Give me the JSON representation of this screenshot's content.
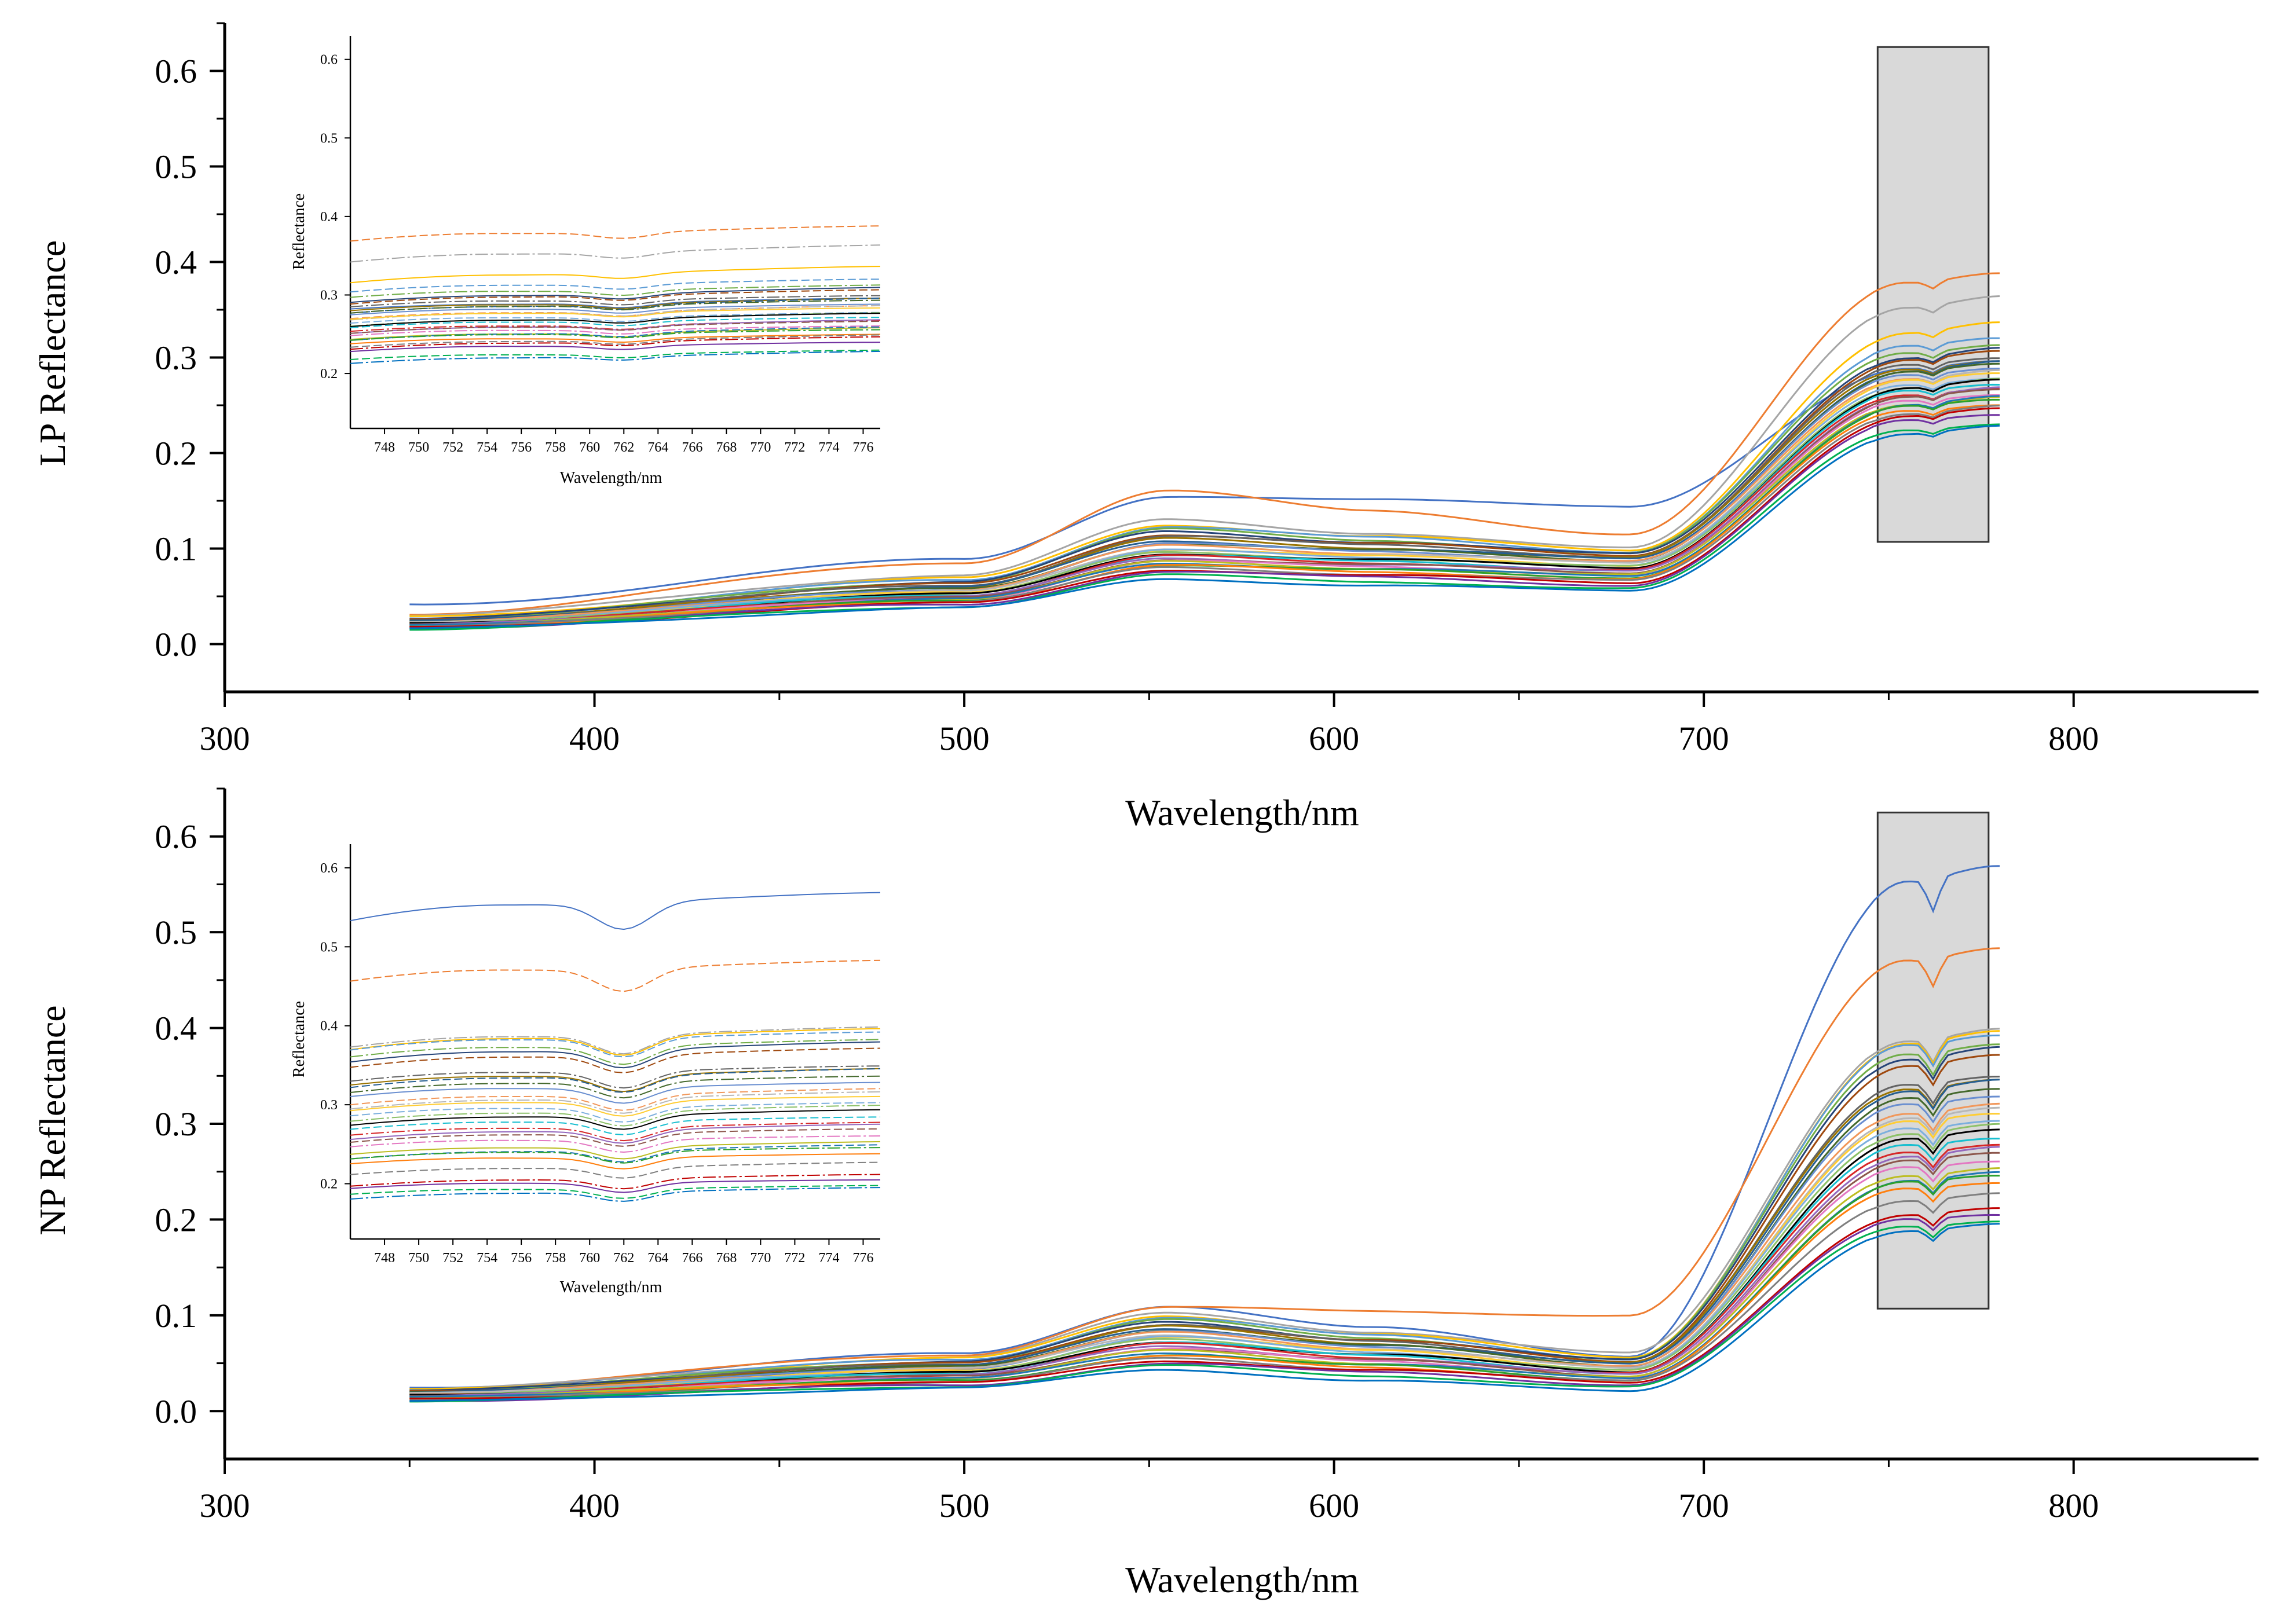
{
  "chart_data": [
    {
      "type": "line",
      "panel": "LP",
      "xlabel": "Wavelength/nm",
      "ylabel": "LP Reflectance",
      "xlim": [
        300,
        850
      ],
      "ylim": [
        -0.05,
        0.65
      ],
      "xticks": [
        300,
        400,
        500,
        600,
        700,
        800
      ],
      "yticks": [
        0.0,
        0.1,
        0.2,
        0.3,
        0.4,
        0.5,
        0.6
      ],
      "x_range": [
        350,
        780
      ],
      "highlight_range": {
        "x": [
          747,
          777
        ],
        "y": [
          0.107,
          0.625
        ],
        "color": "#d9d9d9"
      },
      "series_note": "33 reflectance spectra (350-780 nm)",
      "series_profiles": {
        "start": [
          0.041,
          0.032,
          0.03,
          0.028,
          0.027,
          0.026,
          0.026,
          0.025,
          0.025,
          0.024,
          0.024,
          0.023,
          0.023,
          0.023,
          0.022,
          0.022,
          0.022,
          0.021,
          0.021,
          0.021,
          0.02,
          0.02,
          0.02,
          0.019,
          0.019,
          0.019,
          0.018,
          0.018,
          0.018,
          0.017,
          0.017,
          0.016,
          0.016
        ],
        "green_peak": [
          0.155,
          0.16,
          0.13,
          0.125,
          0.123,
          0.12,
          0.118,
          0.115,
          0.113,
          0.11,
          0.108,
          0.106,
          0.105,
          0.103,
          0.1,
          0.099,
          0.098,
          0.096,
          0.095,
          0.093,
          0.092,
          0.09,
          0.089,
          0.087,
          0.086,
          0.085,
          0.083,
          0.082,
          0.08,
          0.078,
          0.076,
          0.072,
          0.068
        ],
        "red_trough": [
          0.145,
          0.115,
          0.1,
          0.098,
          0.097,
          0.095,
          0.094,
          0.093,
          0.092,
          0.09,
          0.089,
          0.088,
          0.087,
          0.086,
          0.085,
          0.083,
          0.082,
          0.081,
          0.08,
          0.078,
          0.077,
          0.076,
          0.075,
          0.073,
          0.072,
          0.071,
          0.07,
          0.068,
          0.066,
          0.064,
          0.062,
          0.058,
          0.055
        ],
        "nir_plateau": [
          0.295,
          0.39,
          0.365,
          0.335,
          0.32,
          0.315,
          0.31,
          0.305,
          0.3,
          0.298,
          0.295,
          0.292,
          0.29,
          0.288,
          0.285,
          0.283,
          0.28,
          0.278,
          0.275,
          0.272,
          0.27,
          0.268,
          0.265,
          0.262,
          0.26,
          0.258,
          0.255,
          0.252,
          0.25,
          0.245,
          0.24,
          0.232,
          0.228
        ]
      },
      "inset": {
        "xlabel": "Wavelength/nm",
        "ylabel": "Reflectance",
        "xlim": [
          746,
          777
        ],
        "ylim": [
          0.13,
          0.63
        ],
        "xticks": [
          748,
          750,
          752,
          754,
          756,
          758,
          760,
          762,
          764,
          766,
          768,
          770,
          772,
          774,
          776
        ],
        "yticks": [
          0.2,
          0.3,
          0.4,
          0.5,
          0.6
        ]
      }
    },
    {
      "type": "line",
      "panel": "NP",
      "xlabel": "Wavelength/nm",
      "ylabel": "NP Reflectance",
      "xlim": [
        300,
        850
      ],
      "ylim": [
        -0.05,
        0.65
      ],
      "xticks": [
        300,
        400,
        500,
        600,
        700,
        800
      ],
      "yticks": [
        0.0,
        0.1,
        0.2,
        0.3,
        0.4,
        0.5,
        0.6
      ],
      "x_range": [
        350,
        780
      ],
      "highlight_range": {
        "x": [
          747,
          777
        ],
        "y": [
          0.107,
          0.625
        ],
        "color": "#d9d9d9"
      },
      "series_note": "33 reflectance spectra (350-780 nm)",
      "series_profiles": {
        "start": [
          0.024,
          0.024,
          0.023,
          0.022,
          0.022,
          0.021,
          0.021,
          0.02,
          0.02,
          0.019,
          0.019,
          0.019,
          0.018,
          0.018,
          0.018,
          0.017,
          0.017,
          0.016,
          0.016,
          0.016,
          0.015,
          0.015,
          0.015,
          0.014,
          0.014,
          0.014,
          0.013,
          0.013,
          0.012,
          0.012,
          0.011,
          0.011,
          0.01
        ],
        "green_peak": [
          0.11,
          0.108,
          0.102,
          0.1,
          0.098,
          0.095,
          0.093,
          0.091,
          0.09,
          0.088,
          0.086,
          0.085,
          0.083,
          0.082,
          0.08,
          0.078,
          0.077,
          0.075,
          0.073,
          0.072,
          0.07,
          0.068,
          0.066,
          0.065,
          0.063,
          0.061,
          0.059,
          0.057,
          0.055,
          0.053,
          0.05,
          0.047,
          0.043
        ],
        "red_trough": [
          0.058,
          0.1,
          0.06,
          0.056,
          0.055,
          0.054,
          0.053,
          0.052,
          0.051,
          0.05,
          0.049,
          0.048,
          0.047,
          0.046,
          0.045,
          0.044,
          0.043,
          0.042,
          0.041,
          0.04,
          0.039,
          0.038,
          0.037,
          0.036,
          0.035,
          0.034,
          0.033,
          0.032,
          0.031,
          0.03,
          0.028,
          0.025,
          0.02
        ],
        "nir_plateau": [
          0.568,
          0.485,
          0.4,
          0.395,
          0.392,
          0.385,
          0.38,
          0.37,
          0.35,
          0.348,
          0.345,
          0.335,
          0.33,
          0.322,
          0.315,
          0.31,
          0.305,
          0.3,
          0.292,
          0.285,
          0.28,
          0.275,
          0.268,
          0.262,
          0.255,
          0.248,
          0.245,
          0.24,
          0.228,
          0.21,
          0.205,
          0.2,
          0.195
        ]
      },
      "inset": {
        "xlabel": "Wavelength/nm",
        "ylabel": "Reflectance",
        "xlim": [
          746,
          777
        ],
        "ylim": [
          0.13,
          0.63
        ],
        "xticks": [
          748,
          750,
          752,
          754,
          756,
          758,
          760,
          762,
          764,
          766,
          768,
          770,
          772,
          774,
          776
        ],
        "yticks": [
          0.2,
          0.3,
          0.4,
          0.5,
          0.6
        ]
      }
    }
  ],
  "palette": [
    "#4472c4",
    "#ed7d31",
    "#a5a5a5",
    "#ffc000",
    "#5b9bd5",
    "#70ad47",
    "#264478",
    "#9e480e",
    "#636363",
    "#997300",
    "#255e91",
    "#43682b",
    "#698ed0",
    "#f1975a",
    "#b7b7b7",
    "#ffcd33",
    "#7cafdd",
    "#8cc168",
    "#000000",
    "#17becf",
    "#d62728",
    "#9467bd",
    "#8c564b",
    "#e377c2",
    "#bcbd22",
    "#1f77b4",
    "#2ca02c",
    "#ff7f0e",
    "#7f7f7f",
    "#c00000",
    "#7030a0",
    "#00b050",
    "#0070c0"
  ]
}
